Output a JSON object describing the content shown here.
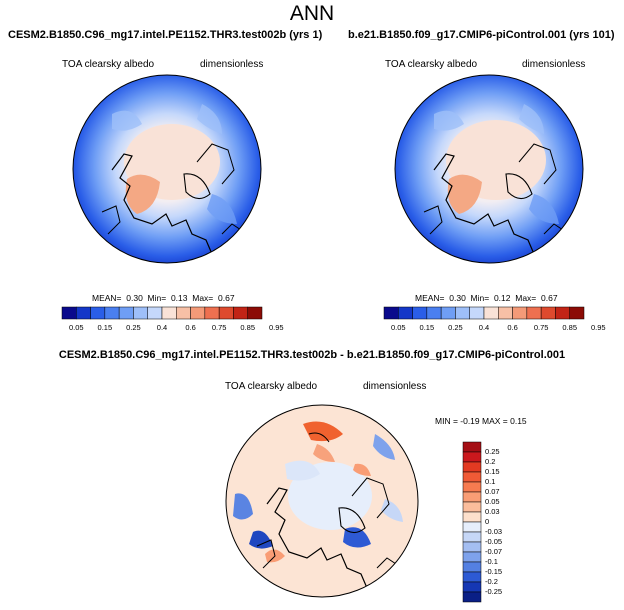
{
  "page": {
    "title": "ANN"
  },
  "panels": [
    {
      "case": "CESM2.B1850.C96_mg17.intel.PE1152.THR3.test002b (yrs 1)",
      "variable": "TOA clearsky albedo",
      "units": "dimensionless",
      "stats": {
        "mean_label": "MEAN=",
        "mean": "0.30",
        "min_label": "Min=",
        "min": "0.13",
        "max_label": "Max=",
        "max": "0.67"
      }
    },
    {
      "case": "b.e21.B1850.f09_g17.CMIP6-piControl.001 (yrs 101)",
      "variable": "TOA clearsky albedo",
      "units": "dimensionless",
      "stats": {
        "mean_label": "MEAN=",
        "mean": "0.30",
        "min_label": "Min=",
        "min": "0.12",
        "max_label": "Max=",
        "max": "0.67"
      }
    }
  ],
  "colorbar": {
    "labels": [
      "0.05",
      "0.15",
      "0.25",
      "0.4",
      "0.6",
      "0.75",
      "0.85",
      "0.95"
    ],
    "colors": [
      "#0a0a8c",
      "#1437c8",
      "#2a5ee8",
      "#4a7ff0",
      "#6f9ef5",
      "#9ebff9",
      "#c5d8fb",
      "#f9e2d7",
      "#f7c0a6",
      "#f49a78",
      "#ee7050",
      "#de4a2e",
      "#c22416",
      "#8c0c06"
    ]
  },
  "difference": {
    "title": "CESM2.B1850.C96_mg17.intel.PE1152.THR3.test002b - b.e21.B1850.f09_g17.CMIP6-piControl.001",
    "variable": "TOA clearsky albedo",
    "units": "dimensionless",
    "minmax": "MIN = -0.19 MAX =   0.15",
    "colorbar": {
      "labels": [
        "0.25",
        "0.2",
        "0.15",
        "0.1",
        "0.07",
        "0.05",
        "0.03",
        "0",
        "-0.03",
        "-0.05",
        "-0.07",
        "-0.1",
        "-0.15",
        "-0.2",
        "-0.25"
      ],
      "colors": [
        "#a50f15",
        "#cb181d",
        "#e33a22",
        "#f05a36",
        "#f77b50",
        "#f99d75",
        "#fbbd9c",
        "#fde0cc",
        "#e6eefb",
        "#c6d7f7",
        "#a4bef2",
        "#7ea2ec",
        "#5480e2",
        "#2d5ad4",
        "#1537b4",
        "#0a1f86"
      ]
    }
  }
}
